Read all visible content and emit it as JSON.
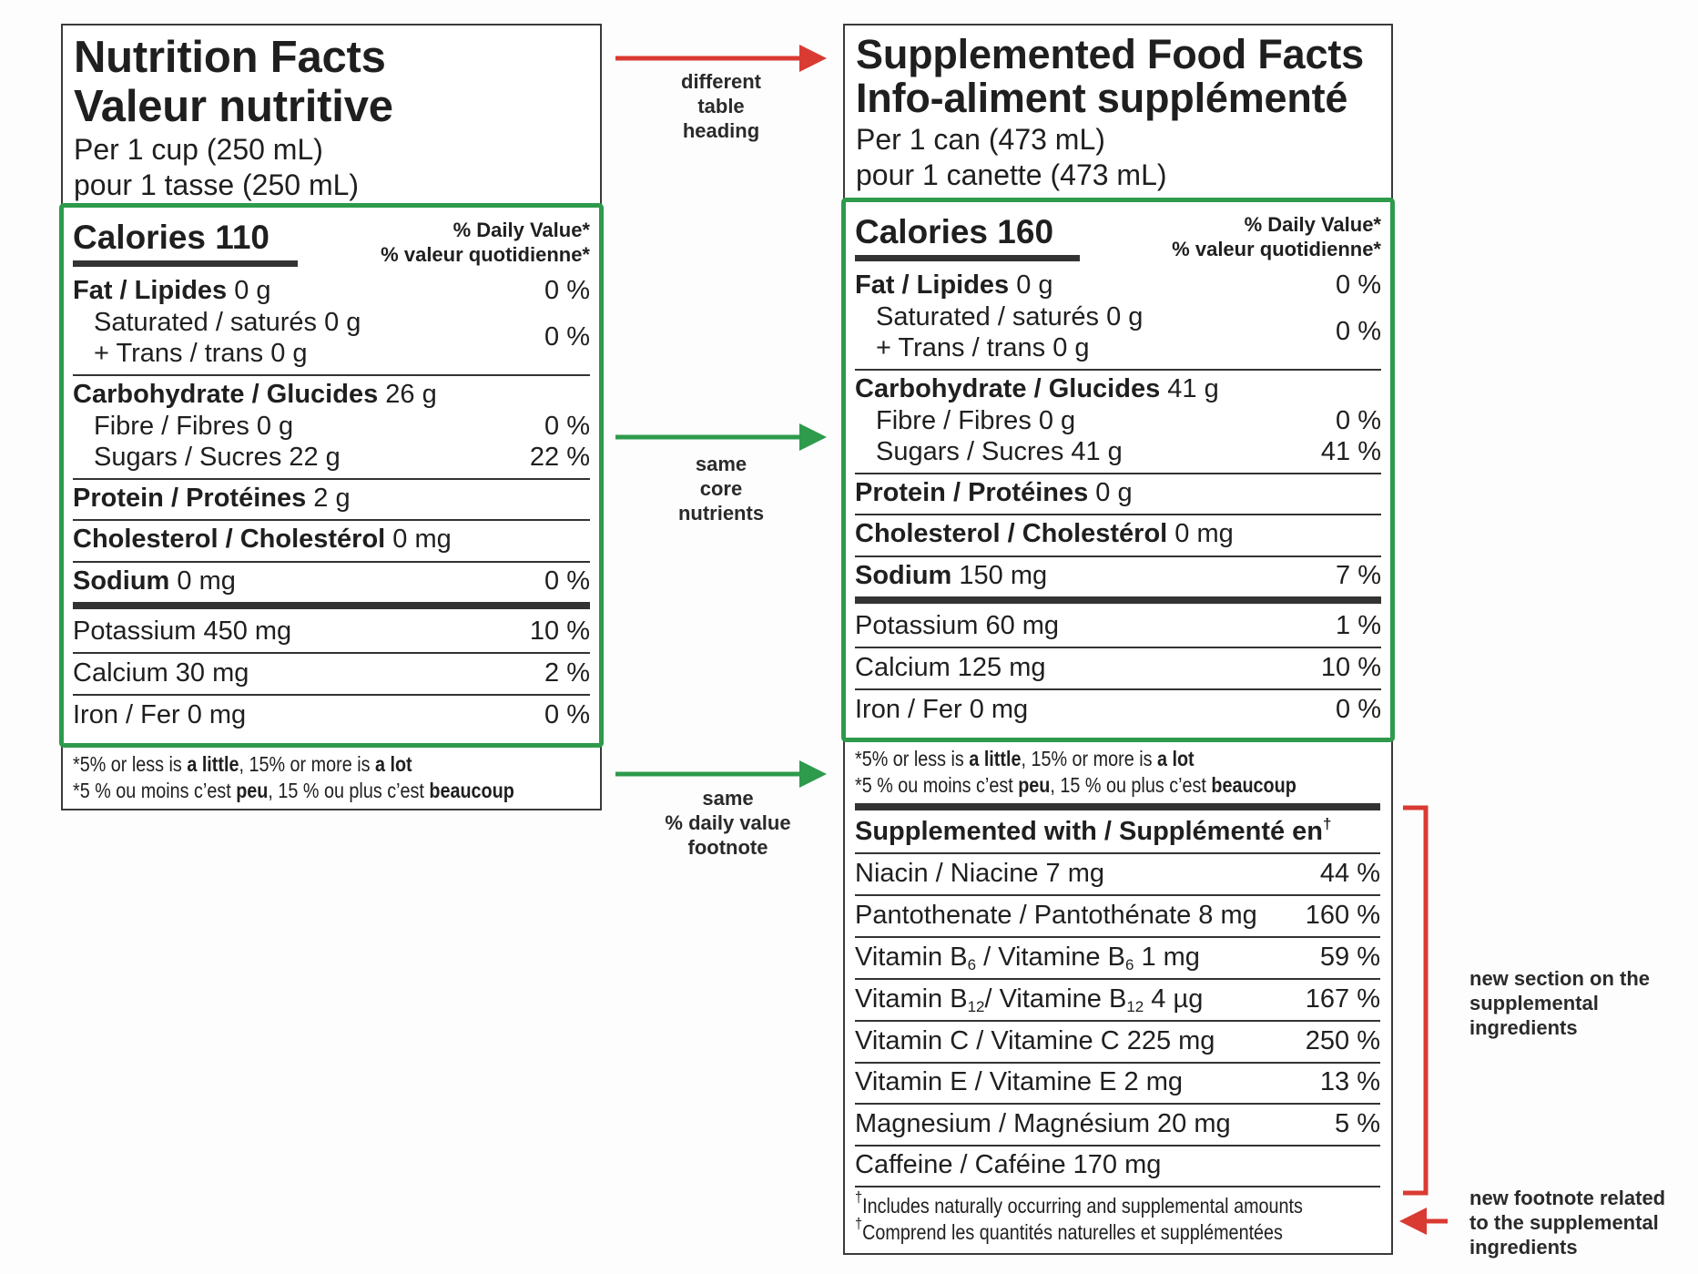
{
  "left": {
    "title_en": "Nutrition Facts",
    "title_fr": "Valeur nutritive",
    "serving_en": "Per 1 cup (250 mL)",
    "serving_fr": "pour 1 tasse (250 mL)",
    "calories": "Calories 110",
    "dv_en": "% Daily Value*",
    "dv_fr": "% valeur quotidienne*",
    "fat_b": "Fat / Lipides",
    "fat_v": "0 g",
    "fat_p": "0 %",
    "sat": "Saturated / saturés 0 g",
    "trans": "+ Trans / trans 0 g",
    "sat_p": "0 %",
    "carb_b": "Carbohydrate / Glucides",
    "carb_v": "26 g",
    "fibre": "Fibre / Fibres 0 g",
    "fibre_p": "0 %",
    "sugars": "Sugars / Sucres 22 g",
    "sugars_p": "22 %",
    "protein_b": "Protein / Protéines",
    "protein_v": "2 g",
    "chol_b": "Cholesterol / Cholestérol",
    "chol_v": "0 mg",
    "sodium_b": "Sodium",
    "sodium_v": "0 mg",
    "sodium_p": "0 %",
    "potassium": "Potassium 450 mg",
    "potassium_p": "10 %",
    "calcium": "Calcium 30 mg",
    "calcium_p": "2 %",
    "iron": "Iron / Fer 0 mg",
    "iron_p": "0 %",
    "fn1_a": "*5% or less is ",
    "fn1_b": "a little",
    "fn1_c": ", 15% or more is ",
    "fn1_d": "a lot",
    "fn2_a": "*5 % ou moins c’est ",
    "fn2_b": "peu",
    "fn2_c": ", 15 % ou plus c’est ",
    "fn2_d": "beaucoup"
  },
  "right": {
    "title_en": "Supplemented Food Facts",
    "title_fr": "Info-aliment supplémenté",
    "serving_en": "Per 1 can (473  mL)",
    "serving_fr": "pour 1 canette (473 mL)",
    "calories": "Calories 160",
    "dv_en": "% Daily Value*",
    "dv_fr": "% valeur quotidienne*",
    "fat_b": "Fat / Lipides",
    "fat_v": "0 g",
    "fat_p": "0 %",
    "sat": "Saturated / saturés 0 g",
    "trans": "+ Trans / trans 0 g",
    "sat_p": "0 %",
    "carb_b": "Carbohydrate / Glucides",
    "carb_v": "41 g",
    "fibre": "Fibre / Fibres 0 g",
    "fibre_p": "0 %",
    "sugars": "Sugars / Sucres 41 g",
    "sugars_p": "41 %",
    "protein_b": "Protein / Protéines",
    "protein_v": "0 g",
    "chol_b": "Cholesterol / Cholestérol",
    "chol_v": "0 mg",
    "sodium_b": "Sodium",
    "sodium_v": "150 mg",
    "sodium_p": "7 %",
    "potassium": "Potassium 60 mg",
    "potassium_p": "1 %",
    "calcium": "Calcium 125 mg",
    "calcium_p": "10 %",
    "iron": "Iron / Fer 0 mg",
    "iron_p": "0 %",
    "fn1_a": "*5% or less is ",
    "fn1_b": "a little",
    "fn1_c": ", 15% or more is ",
    "fn1_d": "a lot",
    "fn2_a": "*5 % ou moins c’est ",
    "fn2_b": "peu",
    "fn2_c": ", 15 % ou plus c’est ",
    "fn2_d": "beaucoup",
    "supp_heading": "Supplemented with / Supplémenté en",
    "supp_mark": "†",
    "niacin": "Niacin / Niacine 7 mg",
    "niacin_p": "44 %",
    "panto": "Pantothenate / Pantothénate 8 mg",
    "panto_p": "160 %",
    "b6_a": "Vitamin B",
    "b6_sub": "6",
    "b6_b": " / Vitamine B",
    "b6_c": " 1 mg",
    "b6_p": "59 %",
    "b12_a": "Vitamin B",
    "b12_sub": "12",
    "b12_b": "/ Vitamine B",
    "b12_c": " 4 µg",
    "b12_p": "167 %",
    "vitc": "Vitamin C / Vitamine C 225 mg",
    "vitc_p": "250 %",
    "vite": "Vitamin E / Vitamine E 2 mg",
    "vite_p": "13 %",
    "magnesium": "Magnesium / Magnésium 20 mg",
    "magnesium_p": "5 %",
    "caffeine": "Caffeine / Caféine 170 mg",
    "fn3": "Includes naturally occurring and supplemental amounts",
    "fn4": "Comprend les quantités naturelles et supplémentées"
  },
  "annotations": {
    "heading_1": "different",
    "heading_2": "table",
    "heading_3": "heading",
    "core_1": "same",
    "core_2": "core",
    "core_3": "nutrients",
    "dv_1": "same",
    "dv_2": "% daily value",
    "dv_3": "footnote",
    "section_1": "new section on the",
    "section_2": "supplemental",
    "section_3": "ingredients",
    "footnote_1": "new footnote related",
    "footnote_2": "to the supplemental",
    "footnote_3": "ingredients"
  },
  "colors": {
    "red": "#d93a32",
    "green": "#2e9a4c",
    "text": "#1f1f1f"
  }
}
